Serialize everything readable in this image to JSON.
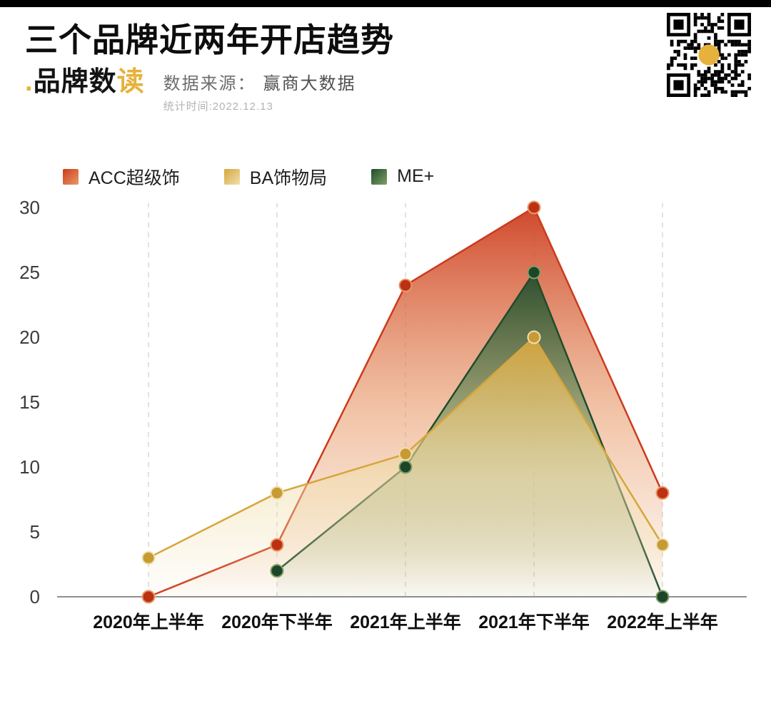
{
  "header": {
    "title": "三个品牌近两年开店趋势",
    "logo": {
      "dot": ".",
      "main": "品牌数",
      "accent": "读"
    },
    "source_label": "数据来源：",
    "source_value": "赢商大数据",
    "stat_time": "统计时间:2022.12.13"
  },
  "colors": {
    "accent_yellow": "#E6B23C",
    "axis": "#8f8f8f",
    "grid": "#d8d8d8",
    "tick_text": "#3c3c3c",
    "xlabel_text": "#101010"
  },
  "chart_data": {
    "type": "area",
    "title": "三个品牌近两年开店趋势",
    "categories": [
      "2020年上半年",
      "2020年下半年",
      "2021年上半年",
      "2021年下半年",
      "2022年上半年"
    ],
    "series": [
      {
        "name": "ACC超级饰",
        "values": [
          0,
          4,
          24,
          30,
          8
        ],
        "color": "#CC3A1C",
        "color_light": "#E89A67",
        "dot": "#BC3113"
      },
      {
        "name": "BA饰物局",
        "values": [
          3,
          8,
          11,
          20,
          4
        ],
        "color": "#D6A63C",
        "color_light": "#F0DFAE",
        "dot": "#C79A33"
      },
      {
        "name": "ME+",
        "values": [
          null,
          2,
          10,
          25,
          0
        ],
        "color": "#1F4C2C",
        "color_light": "#7FA066",
        "dot": "#1C452A"
      }
    ],
    "ylim": [
      0,
      30
    ],
    "yticks": [
      0,
      5,
      10,
      15,
      20,
      25,
      30
    ],
    "legend_position": "top",
    "grid": "vertical-dashed",
    "draw_order": [
      0,
      2,
      1
    ]
  }
}
